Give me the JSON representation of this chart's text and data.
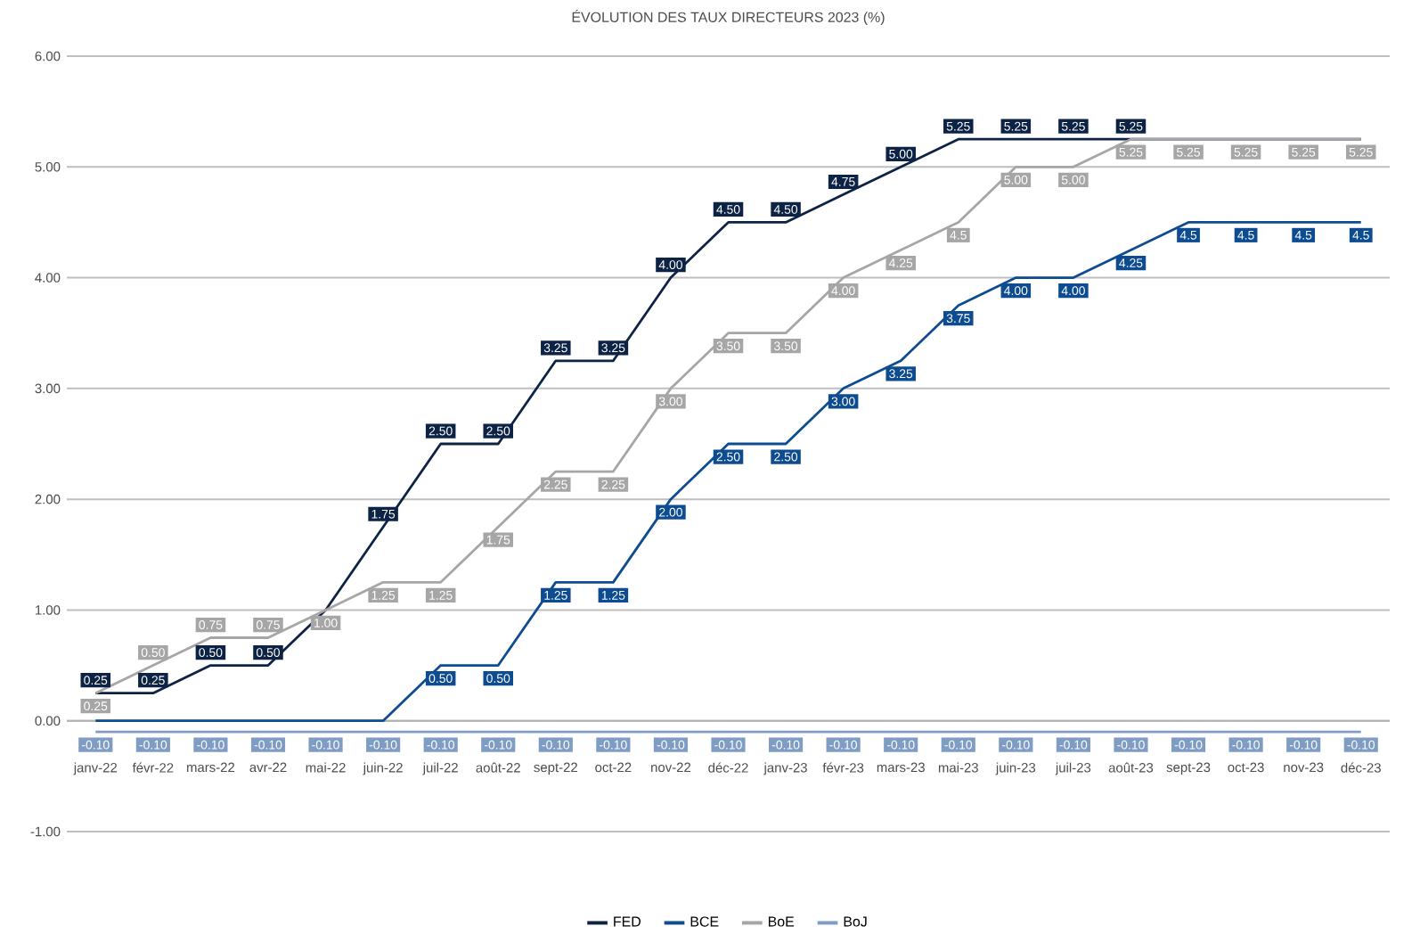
{
  "chart_data": {
    "type": "line",
    "title": "ÉVOLUTION DES TAUX DIRECTEURS 2023 (%)",
    "categories": [
      "janv-22",
      "févr-22",
      "mars-22",
      "avr-22",
      "mai-22",
      "juin-22",
      "juil-22",
      "août-22",
      "sept-22",
      "oct-22",
      "nov-22",
      "déc-22",
      "janv-23",
      "févr-23",
      "mars-23",
      "mai-23",
      "juin-23",
      "juil-23",
      "août-23",
      "sept-23",
      "oct-23",
      "nov-23",
      "déc-23"
    ],
    "series": [
      {
        "name": "FED",
        "color": "#0d2345",
        "values": [
          0.25,
          0.25,
          0.5,
          0.5,
          1.0,
          1.75,
          2.5,
          2.5,
          3.25,
          3.25,
          4.0,
          4.5,
          4.5,
          4.75,
          5.0,
          5.25,
          5.25,
          5.25,
          5.25,
          5.25,
          5.25,
          5.25,
          5.25
        ],
        "value_labels": [
          "0.25",
          "0.25",
          "0.50",
          "0.50",
          null,
          "1.75",
          "2.50",
          "2.50",
          "3.25",
          "3.25",
          "4.00",
          "4.50",
          "4.50",
          "4.75",
          "5.00",
          "5.25",
          "5.25",
          "5.25",
          "5.25",
          null,
          null,
          null,
          null
        ]
      },
      {
        "name": "BCE",
        "color": "#0e4c92",
        "values": [
          0,
          0,
          0,
          0,
          0,
          0,
          0.5,
          0.5,
          1.25,
          1.25,
          2.0,
          2.5,
          2.5,
          3.0,
          3.25,
          3.75,
          4.0,
          4.0,
          4.25,
          4.5,
          4.5,
          4.5,
          4.5
        ],
        "value_labels": [
          null,
          null,
          null,
          null,
          null,
          null,
          "0.50",
          "0.50",
          "1.25",
          "1.25",
          "2.00",
          "2.50",
          "2.50",
          "3.00",
          "3.25",
          "3.75",
          "4.00",
          "4.00",
          "4.25",
          "4.5",
          "4.5",
          "4.5",
          "4.5"
        ]
      },
      {
        "name": "BoE",
        "color": "#a6a6a6",
        "values": [
          0.25,
          0.5,
          0.75,
          0.75,
          1.0,
          1.25,
          1.25,
          1.75,
          2.25,
          2.25,
          3.0,
          3.5,
          3.5,
          4.0,
          4.25,
          4.5,
          5.0,
          5.0,
          5.25,
          5.25,
          5.25,
          5.25,
          5.25
        ],
        "value_labels": [
          "0.25",
          "0.50",
          "0.75",
          "0.75",
          "1.00",
          "1.25",
          "1.25",
          "1.75",
          "2.25",
          "2.25",
          "3.00",
          "3.50",
          "3.50",
          "4.00",
          "4.25",
          "4.5",
          "5.00",
          "5.00",
          "5.25",
          "5.25",
          "5.25",
          "5.25",
          "5.25"
        ]
      },
      {
        "name": "BoJ",
        "color": "#7f9cc4",
        "values": [
          -0.1,
          -0.1,
          -0.1,
          -0.1,
          -0.1,
          -0.1,
          -0.1,
          -0.1,
          -0.1,
          -0.1,
          -0.1,
          -0.1,
          -0.1,
          -0.1,
          -0.1,
          -0.1,
          -0.1,
          -0.1,
          -0.1,
          -0.1,
          -0.1,
          -0.1,
          -0.1
        ],
        "value_labels": [
          "-0.10",
          "-0.10",
          "-0.10",
          "-0.10",
          "-0.10",
          "-0.10",
          "-0.10",
          "-0.10",
          "-0.10",
          "-0.10",
          "-0.10",
          "-0.10",
          "-0.10",
          "-0.10",
          "-0.10",
          "-0.10",
          "-0.10",
          "-0.10",
          "-0.10",
          "-0.10",
          "-0.10",
          "-0.10",
          "-0.10"
        ]
      }
    ],
    "ylim": [
      -1,
      6
    ],
    "yticks": [
      {
        "value": -1,
        "label": "-1.00"
      },
      {
        "value": 0,
        "label": "0.00"
      },
      {
        "value": 1,
        "label": "1.00"
      },
      {
        "value": 2,
        "label": "2.00"
      },
      {
        "value": 3,
        "label": "3.00"
      },
      {
        "value": 4,
        "label": "4.00"
      },
      {
        "value": 5,
        "label": "5.00"
      },
      {
        "value": 6,
        "label": "6.00"
      }
    ],
    "grid": "y",
    "legend": "bottom"
  }
}
